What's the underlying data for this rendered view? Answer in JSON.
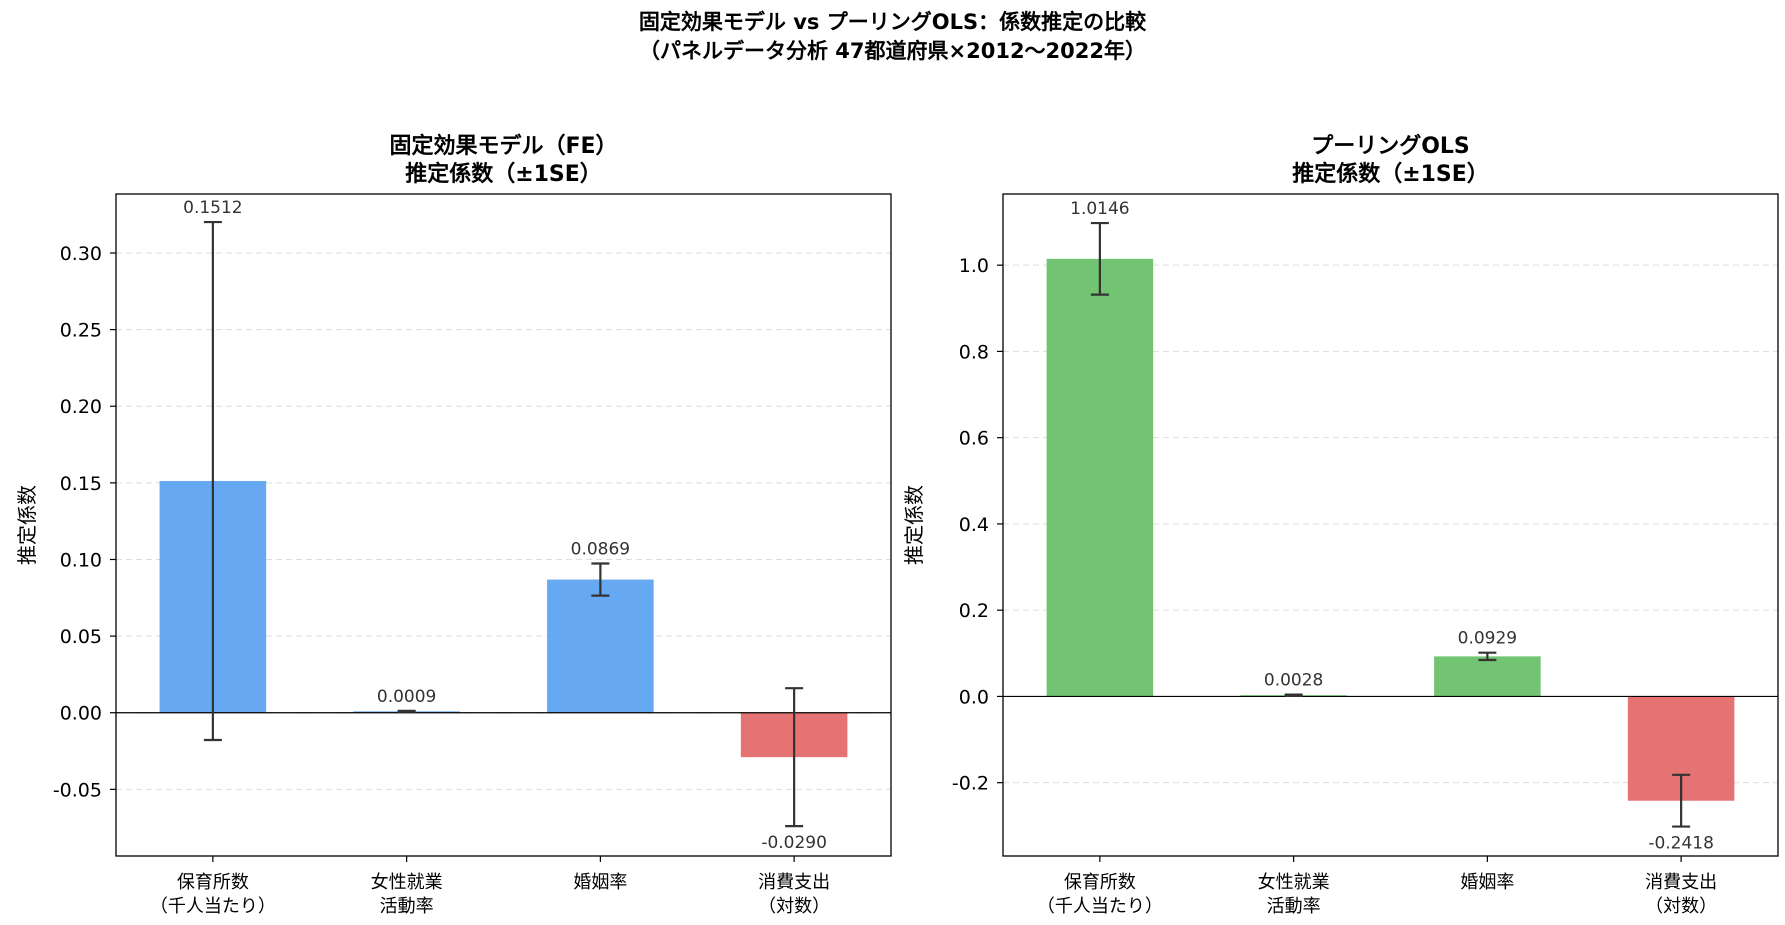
{
  "figure": {
    "suptitle_line1": "固定効果モデル vs プーリングOLS：係数推定の比較",
    "suptitle_line2": "（パネルデータ分析 47都道府県×2012〜2022年）"
  },
  "colors": {
    "fe_positive": "#66a9f2",
    "ols_positive": "#72c472",
    "negative": "#e57373",
    "errorbar": "#333333",
    "grid": "#dddddd"
  },
  "chart_data": [
    {
      "type": "bar",
      "title_line1": "固定効果モデル（FE）",
      "title_line2": "推定係数（±1SE）",
      "ylabel": "推定係数",
      "xlabel": "",
      "categories": [
        [
          "保育所数",
          "（千人当たり）"
        ],
        [
          "女性就業",
          "活動率"
        ],
        [
          "婚姻率"
        ],
        [
          "消費支出",
          "（対数）"
        ]
      ],
      "values": [
        0.1512,
        0.0009,
        0.0869,
        -0.029
      ],
      "value_labels": [
        "0.1512",
        "0.0009",
        "0.0869",
        "-0.0290"
      ],
      "errors": [
        0.169,
        0.0003,
        0.0105,
        0.045
      ],
      "ylim": [
        -0.0935,
        0.3385
      ],
      "yticks": [
        -0.05,
        0.0,
        0.05,
        0.1,
        0.15,
        0.2,
        0.25,
        0.3
      ],
      "ytick_labels": [
        "-0.05",
        "0.00",
        "0.05",
        "0.10",
        "0.15",
        "0.20",
        "0.25",
        "0.30"
      ],
      "grid": true,
      "positive_color": "#66a9f2"
    },
    {
      "type": "bar",
      "title_line1": "プーリングOLS",
      "title_line2": "推定係数（±1SE）",
      "ylabel": "推定係数",
      "xlabel": "",
      "categories": [
        [
          "保育所数",
          "（千人当たり）"
        ],
        [
          "女性就業",
          "活動率"
        ],
        [
          "婚姻率"
        ],
        [
          "消費支出",
          "（対数）"
        ]
      ],
      "values": [
        1.0146,
        0.0028,
        0.0929,
        -0.2418
      ],
      "value_labels": [
        "1.0146",
        "0.0028",
        "0.0929",
        "-0.2418"
      ],
      "errors": [
        0.083,
        0.0015,
        0.0085,
        0.06
      ],
      "ylim": [
        -0.37,
        1.165
      ],
      "yticks": [
        -0.2,
        0.0,
        0.2,
        0.4,
        0.6,
        0.8,
        1.0
      ],
      "ytick_labels": [
        "-0.2",
        "0.0",
        "0.2",
        "0.4",
        "0.6",
        "0.8",
        "1.0"
      ],
      "grid": true,
      "positive_color": "#72c472"
    }
  ]
}
